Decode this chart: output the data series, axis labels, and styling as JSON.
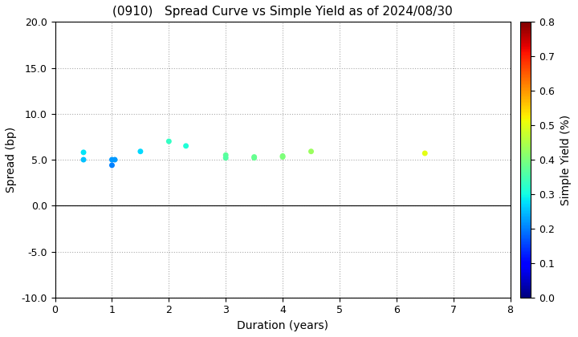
{
  "title": "(0910)   Spread Curve vs Simple Yield as of 2024/08/30",
  "xlabel": "Duration (years)",
  "ylabel": "Spread (bp)",
  "colorbar_label": "Simple Yield (%)",
  "xlim": [
    0,
    8
  ],
  "ylim": [
    -10,
    20
  ],
  "yticks": [
    -10.0,
    -5.0,
    0.0,
    5.0,
    10.0,
    15.0,
    20.0
  ],
  "xticks": [
    0,
    1,
    2,
    3,
    4,
    5,
    6,
    7,
    8
  ],
  "points": [
    {
      "duration": 0.5,
      "spread": 5.8,
      "simple_yield": 0.28
    },
    {
      "duration": 0.5,
      "spread": 5.0,
      "simple_yield": 0.25
    },
    {
      "duration": 1.0,
      "spread": 5.0,
      "simple_yield": 0.22
    },
    {
      "duration": 1.0,
      "spread": 4.4,
      "simple_yield": 0.2
    },
    {
      "duration": 1.05,
      "spread": 5.0,
      "simple_yield": 0.22
    },
    {
      "duration": 1.5,
      "spread": 5.9,
      "simple_yield": 0.27
    },
    {
      "duration": 2.0,
      "spread": 7.0,
      "simple_yield": 0.33
    },
    {
      "duration": 2.3,
      "spread": 6.5,
      "simple_yield": 0.31
    },
    {
      "duration": 3.0,
      "spread": 5.5,
      "simple_yield": 0.37
    },
    {
      "duration": 3.0,
      "spread": 5.2,
      "simple_yield": 0.36
    },
    {
      "duration": 3.5,
      "spread": 5.3,
      "simple_yield": 0.38
    },
    {
      "duration": 3.5,
      "spread": 5.2,
      "simple_yield": 0.38
    },
    {
      "duration": 4.0,
      "spread": 5.4,
      "simple_yield": 0.4
    },
    {
      "duration": 4.0,
      "spread": 5.3,
      "simple_yield": 0.4
    },
    {
      "duration": 4.5,
      "spread": 5.9,
      "simple_yield": 0.43
    },
    {
      "duration": 6.5,
      "spread": 5.7,
      "simple_yield": 0.5
    }
  ],
  "cmap": "jet",
  "vmin": 0.0,
  "vmax": 0.8,
  "marker_size": 25,
  "background_color": "#ffffff",
  "grid_color": "#aaaaaa",
  "grid_style": "dotted",
  "title_fontsize": 11,
  "axis_fontsize": 10,
  "tick_fontsize": 9
}
